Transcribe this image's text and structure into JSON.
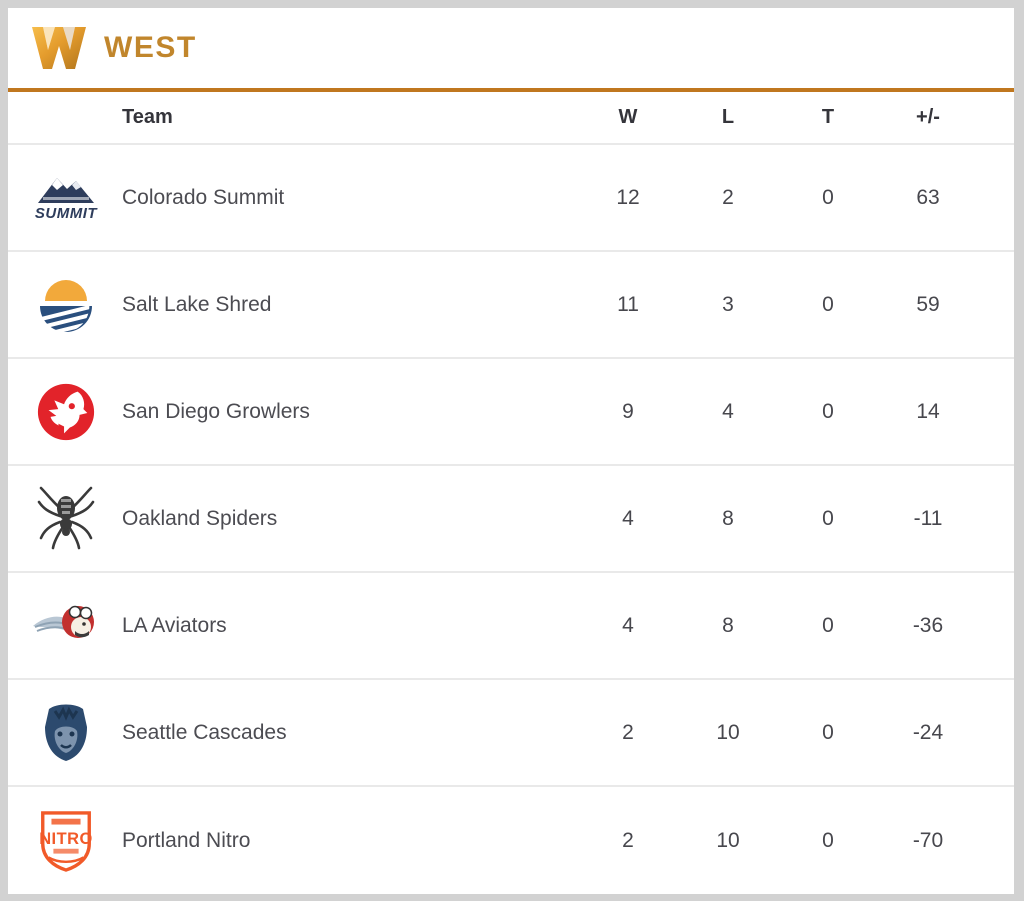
{
  "division": {
    "letter_icon": "w-division-icon",
    "title": "WEST",
    "accent_text_color": "#c1862c",
    "accent_bar_color": "#c0771f"
  },
  "table": {
    "columns": [
      "Team",
      "W",
      "L",
      "T",
      "+/-"
    ],
    "rows": [
      {
        "team": "Colorado Summit",
        "logo": "colorado-summit-logo",
        "w": "12",
        "l": "2",
        "t": "0",
        "plus_minus": "63"
      },
      {
        "team": "Salt Lake Shred",
        "logo": "salt-lake-shred-logo",
        "w": "11",
        "l": "3",
        "t": "0",
        "plus_minus": "59"
      },
      {
        "team": "San Diego Growlers",
        "logo": "san-diego-growlers-logo",
        "w": "9",
        "l": "4",
        "t": "0",
        "plus_minus": "14"
      },
      {
        "team": "Oakland Spiders",
        "logo": "oakland-spiders-logo",
        "w": "4",
        "l": "8",
        "t": "0",
        "plus_minus": "-11"
      },
      {
        "team": "LA Aviators",
        "logo": "la-aviators-logo",
        "w": "4",
        "l": "8",
        "t": "0",
        "plus_minus": "-36"
      },
      {
        "team": "Seattle Cascades",
        "logo": "seattle-cascades-logo",
        "w": "2",
        "l": "10",
        "t": "0",
        "plus_minus": "-24"
      },
      {
        "team": "Portland Nitro",
        "logo": "portland-nitro-logo",
        "w": "2",
        "l": "10",
        "t": "0",
        "plus_minus": "-70"
      }
    ]
  }
}
